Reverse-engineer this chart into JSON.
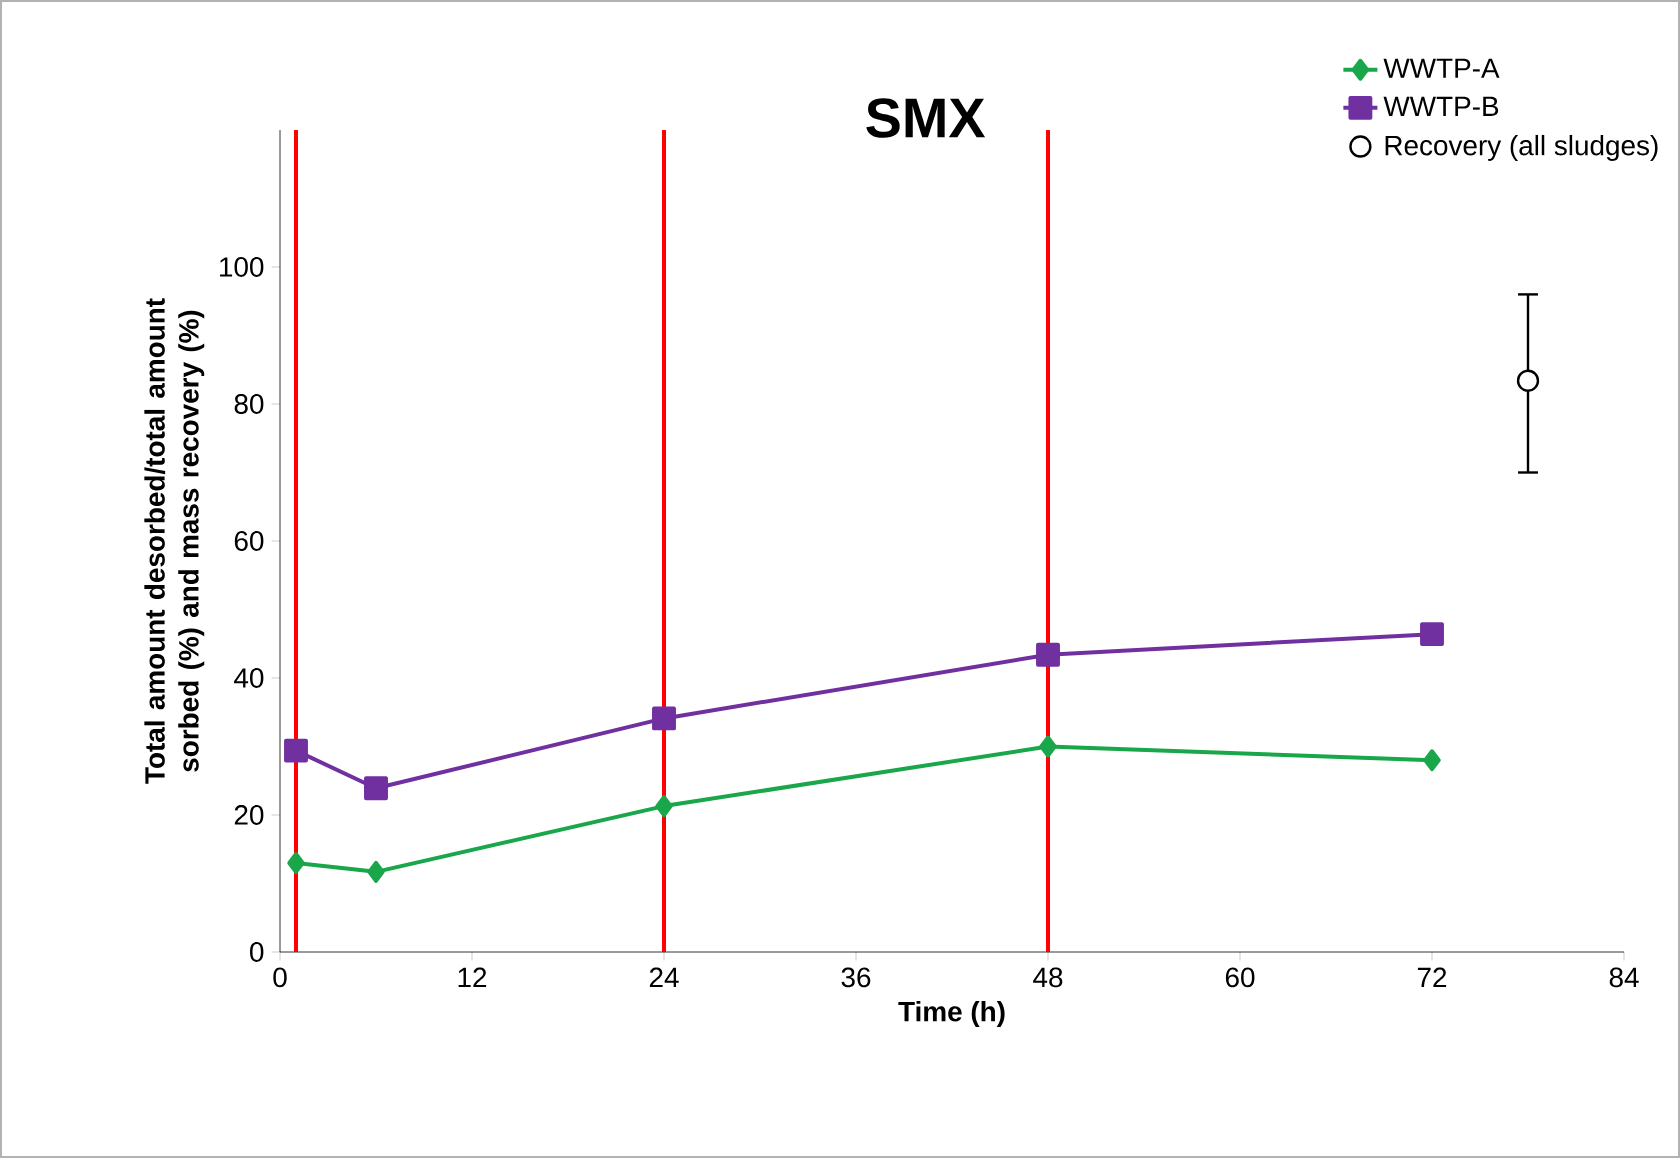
{
  "chart_data": {
    "type": "line",
    "title": "SMX",
    "xlabel": "Time (h)",
    "ylabel": "Total amount desorbed/total amount sorbed (%) and mass recovery (%)",
    "xlim": [
      0,
      84
    ],
    "xticks": [
      0,
      12,
      24,
      36,
      48,
      60,
      72,
      84
    ],
    "ylim": [
      0,
      120
    ],
    "yticks": [
      0,
      20,
      40,
      60,
      80,
      100
    ],
    "series": [
      {
        "name": "WWTP-A",
        "color": "#1aa64a",
        "marker": "diamond",
        "x": [
          1,
          6,
          24,
          48,
          72
        ],
        "values": [
          13,
          11.7,
          21.3,
          30,
          28
        ]
      },
      {
        "name": "WWTP-B",
        "color": "#7030a0",
        "marker": "square",
        "x": [
          1,
          6,
          24,
          48,
          72
        ],
        "values": [
          29.4,
          23.9,
          34.1,
          43.4,
          46.4
        ]
      },
      {
        "name": "Recovery (all sludges)",
        "type": "scatter",
        "color": "#000000",
        "marker": "circle",
        "x": [
          78
        ],
        "values": [
          83.4
        ],
        "errors": [
          [
            70,
            96
          ]
        ]
      }
    ],
    "ref_lines": [
      {
        "axis": "x",
        "value": 1,
        "color": "#ff0000"
      },
      {
        "axis": "x",
        "value": 24,
        "color": "#ff0000"
      },
      {
        "axis": "x",
        "value": 48,
        "color": "#ff0000"
      }
    ],
    "legend": "top right",
    "grid": false
  }
}
